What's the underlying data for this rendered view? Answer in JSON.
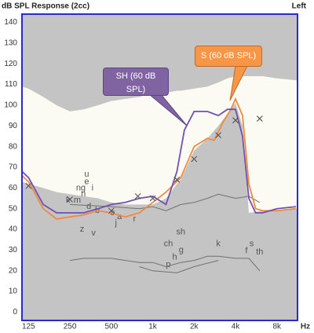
{
  "chart_data": {
    "type": "line",
    "title": "dB SPL Response (2cc)",
    "side": "Left",
    "xlabel": "Hz",
    "xscale": "log",
    "xlim": [
      112,
      11300
    ],
    "ylim": [
      -4,
      144
    ],
    "xticks": [
      125,
      250,
      500,
      {
        "value": 1000,
        "label": "1k"
      },
      {
        "value": 2000,
        "label": "2k"
      },
      {
        "value": 4000,
        "label": "4k"
      },
      {
        "value": 8000,
        "label": "8k"
      }
    ],
    "yticks": [
      0,
      10,
      20,
      30,
      40,
      50,
      60,
      70,
      80,
      90,
      100,
      110,
      120,
      130,
      140
    ],
    "band": {
      "color": "#fbfbf3",
      "x": [
        112,
        125,
        160,
        200,
        250,
        315,
        400,
        500,
        630,
        800,
        1000,
        1250,
        1500,
        1600,
        2000,
        2500,
        3000,
        3500,
        4000,
        4500,
        5000,
        6300,
        8000,
        11300
      ],
      "upper": [
        109,
        108,
        104,
        100,
        97,
        98,
        100,
        102,
        103,
        104,
        106,
        106,
        107,
        107,
        108,
        109,
        111,
        113,
        114,
        114,
        114,
        114,
        113,
        112
      ],
      "lower": [
        63,
        62,
        60,
        58,
        57,
        56,
        55,
        53,
        52,
        52,
        52,
        55,
        62,
        64,
        78,
        84,
        90,
        96,
        101,
        90,
        48,
        49,
        49,
        50
      ]
    },
    "series": [
      {
        "name": "SH (60 dB SPL)",
        "color": "#7050b0",
        "x": [
          112,
          125,
          160,
          200,
          250,
          315,
          400,
          500,
          630,
          800,
          1000,
          1250,
          1500,
          1700,
          2000,
          2500,
          3000,
          3500,
          4000,
          4500,
          5000,
          5600,
          6300,
          8000,
          11000
        ],
        "values": [
          68,
          65,
          52,
          48,
          48,
          48,
          50,
          52,
          53,
          55,
          56,
          52,
          68,
          88,
          97,
          97,
          95,
          98,
          98,
          85,
          55,
          48,
          48,
          50,
          51
        ]
      },
      {
        "name": "S (60 dB SPL)",
        "color": "#ef8a3e",
        "x": [
          112,
          125,
          160,
          200,
          250,
          315,
          400,
          500,
          630,
          800,
          1000,
          1250,
          1600,
          2000,
          2500,
          2800,
          3200,
          3700,
          4000,
          4500,
          5000,
          5600,
          6300,
          8000,
          11000
        ],
        "values": [
          66,
          63,
          50,
          45,
          46,
          47,
          49,
          48,
          46,
          48,
          53,
          58,
          65,
          80,
          84,
          83,
          91,
          98,
          103,
          95,
          62,
          50,
          49,
          49,
          50
        ]
      },
      {
        "color": "#707070",
        "x": [
          250,
          500,
          800,
          1000,
          1250,
          1600,
          2000,
          2500,
          3000,
          4000,
          5000,
          6000
        ],
        "values": [
          52,
          51,
          50,
          51,
          49,
          52,
          53,
          55,
          57,
          55,
          56,
          53
        ]
      },
      {
        "color": "#707070",
        "x": [
          250,
          315,
          500,
          800,
          1000,
          1250,
          1600,
          2000,
          2500,
          3000,
          4000,
          5000,
          6000
        ],
        "values": [
          25,
          26,
          26,
          24,
          24,
          22,
          24,
          25,
          27,
          27,
          26,
          26,
          20
        ]
      },
      {
        "color": "#707070",
        "x": [
          800,
          1000,
          1500,
          2000,
          3000
        ],
        "values": [
          22,
          20,
          19,
          22,
          25
        ]
      }
    ],
    "markers": {
      "color": "#555555",
      "x": [
        125,
        250,
        500,
        780,
        1000,
        1500,
        2000,
        3000,
        4000,
        6000
      ],
      "values": [
        61,
        54.5,
        49,
        56,
        55,
        64,
        74,
        85.5,
        92.7,
        93.5
      ]
    },
    "annotations": [
      {
        "text": "u",
        "x": 331,
        "y": 66.6
      },
      {
        "text": "e",
        "x": 331,
        "y": 63
      },
      {
        "text": "i",
        "x": 365,
        "y": 60
      },
      {
        "text": "ng",
        "x": 300,
        "y": 60
      },
      {
        "text": "n",
        "x": 313,
        "y": 57
      },
      {
        "text": "m",
        "x": 283,
        "y": 54
      },
      {
        "text": "k",
        "x": 242,
        "y": 54
      },
      {
        "text": "d",
        "x": 343,
        "y": 51
      },
      {
        "text": "b",
        "x": 396,
        "y": 49
      },
      {
        "text": "o",
        "x": 510,
        "y": 48
      },
      {
        "text": "a",
        "x": 573,
        "y": 46
      },
      {
        "text": "j",
        "x": 540,
        "y": 43
      },
      {
        "text": "r",
        "x": 737,
        "y": 45
      },
      {
        "text": "z",
        "x": 306,
        "y": 40
      },
      {
        "text": "v",
        "x": 371,
        "y": 38
      },
      {
        "text": "ch",
        "x": 1300,
        "y": 33
      },
      {
        "text": "sh",
        "x": 1600,
        "y": 38.6
      },
      {
        "text": "g",
        "x": 1610,
        "y": 30
      },
      {
        "text": "h",
        "x": 1445,
        "y": 26.5
      },
      {
        "text": "p",
        "x": 1300,
        "y": 23
      },
      {
        "text": "k",
        "x": 3000,
        "y": 33
      },
      {
        "text": "f",
        "x": 4800,
        "y": 29.5
      },
      {
        "text": "s",
        "x": 5250,
        "y": 33
      },
      {
        "text": "th",
        "x": 6000,
        "y": 29
      }
    ]
  }
}
